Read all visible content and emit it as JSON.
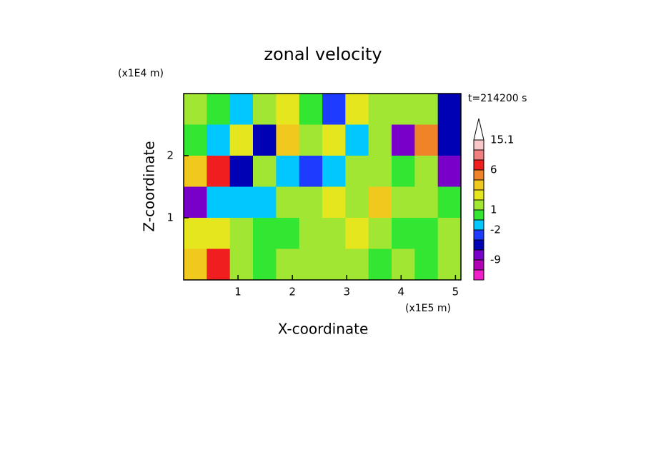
{
  "chart_data": {
    "type": "contour",
    "title": "zonal velocity",
    "annotation": "t=214200 s",
    "x_label": "X-coordinate",
    "y_label": "Z-coordinate",
    "x_multiplier": "(x1E5 m)",
    "y_multiplier": "(x1E4 m)",
    "xlim": [
      0,
      5.1
    ],
    "ylim": [
      0,
      3
    ],
    "xticks": [
      1,
      2,
      3,
      4,
      5
    ],
    "yticks": [
      1,
      2
    ],
    "values": [
      [
        2,
        0,
        -1,
        1,
        3,
        0,
        -4,
        3,
        2,
        1,
        2,
        -6
      ],
      [
        0,
        -1,
        3,
        -6,
        4,
        2,
        3,
        -1,
        1,
        -9,
        5,
        -6
      ],
      [
        4,
        6,
        -6,
        2,
        -2,
        -4,
        -1,
        2,
        2,
        0,
        1,
        -9
      ],
      [
        -9,
        -2,
        -1,
        -2,
        1,
        2,
        3,
        2,
        4,
        1,
        2,
        0
      ],
      [
        3,
        3,
        1,
        0,
        0,
        1,
        2,
        3,
        2,
        0,
        0,
        1
      ],
      [
        4,
        6,
        1,
        0,
        1,
        2,
        2,
        2,
        0,
        1,
        0,
        2
      ]
    ],
    "levels": [
      null,
      -9,
      null,
      null,
      -2,
      null,
      1,
      null,
      null,
      null,
      6,
      null,
      null,
      15.1
    ],
    "colors": [
      "#f01ec8",
      "#b400b4",
      "#7800c8",
      "#0000b4",
      "#1e3cff",
      "#00c8ff",
      "#32e632",
      "#a0e632",
      "#e6e61e",
      "#f0c81e",
      "#f08228",
      "#f01e1e",
      "#f08080",
      "#f8c8c8",
      "#ffffff"
    ]
  }
}
